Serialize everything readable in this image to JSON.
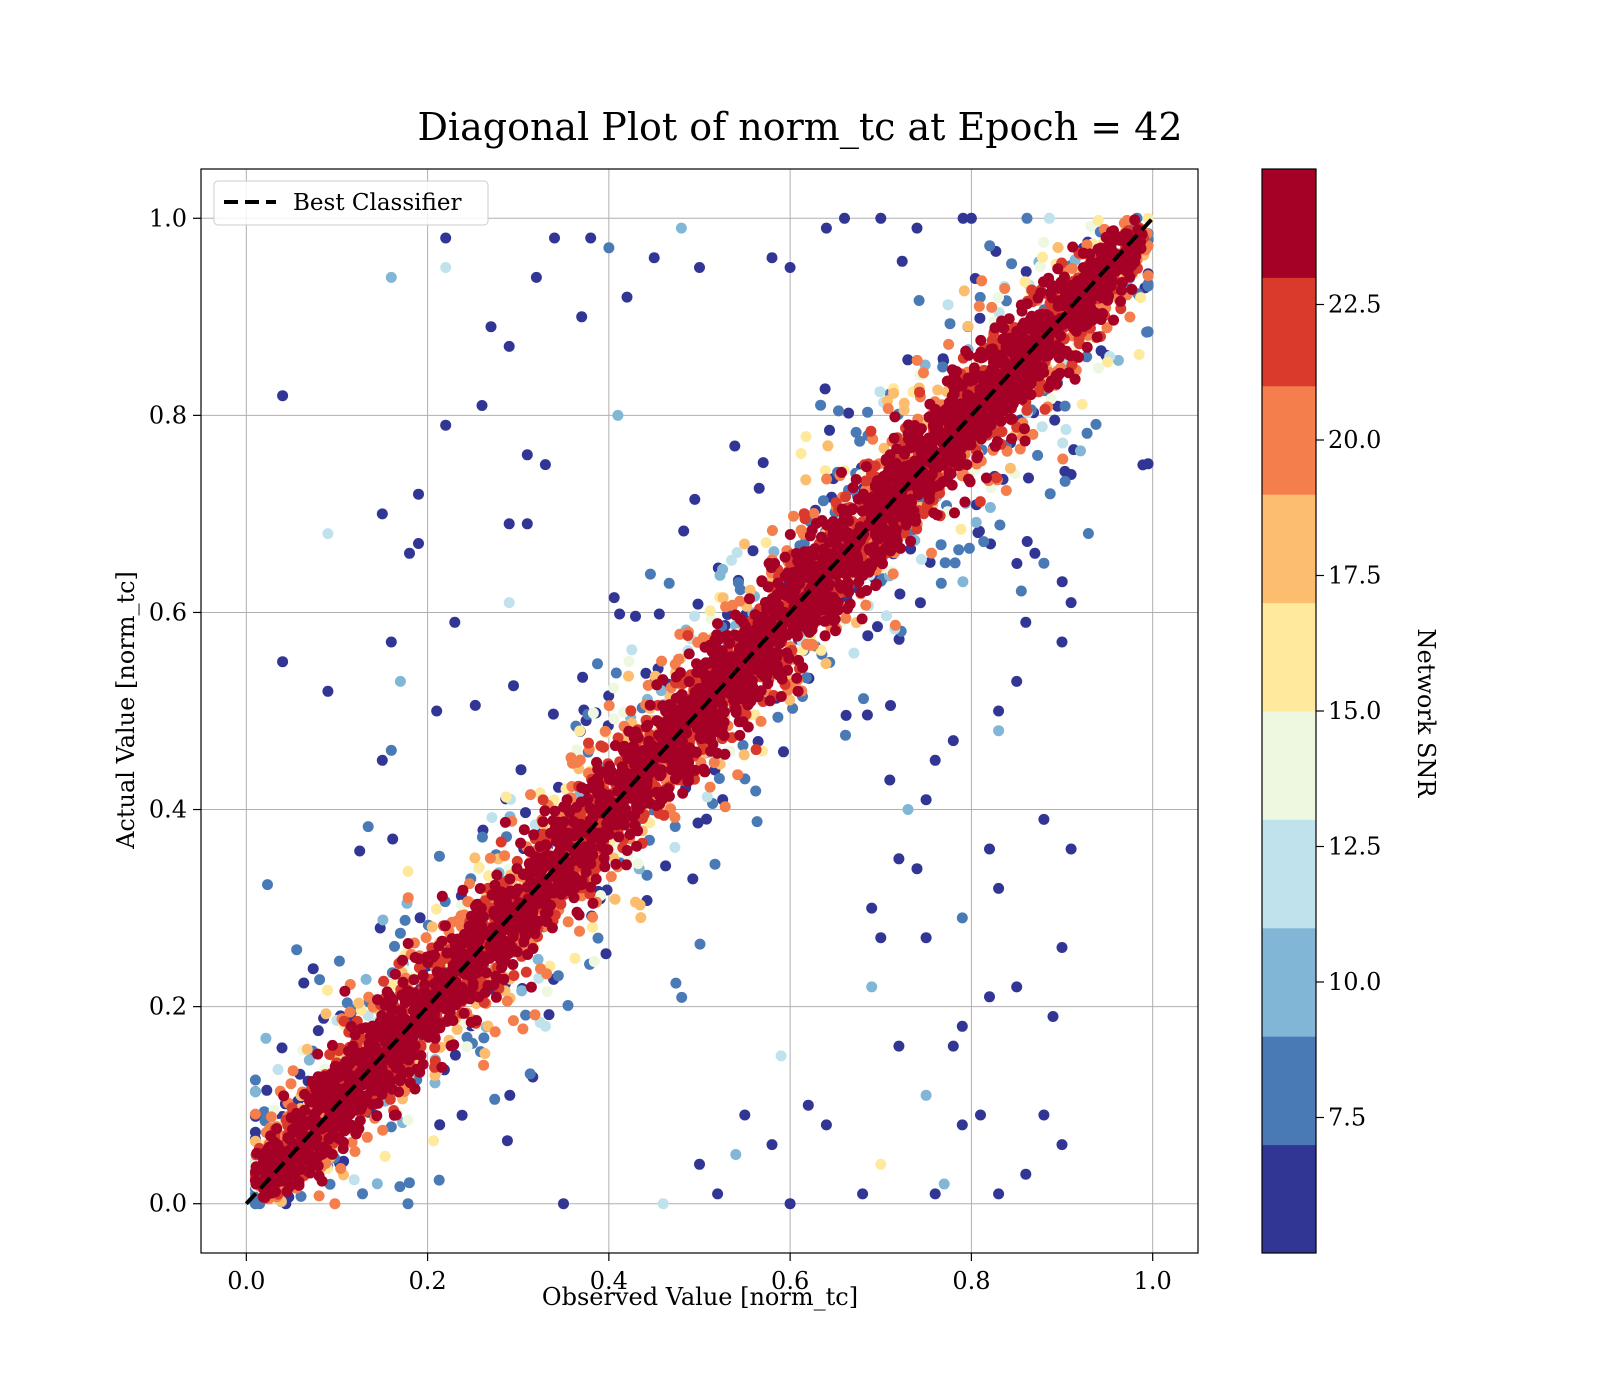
{
  "chart_data": {
    "type": "scatter",
    "title": "Diagonal Plot of norm_tc at Epoch = 42",
    "xlabel": "Observed Value [norm_tc]",
    "ylabel": "Actual Value [norm_tc]",
    "xlim": [
      -0.05,
      1.05
    ],
    "ylim": [
      -0.05,
      1.05
    ],
    "xticks": [
      "0.0",
      "0.2",
      "0.4",
      "0.6",
      "0.8",
      "1.0"
    ],
    "yticks": [
      "0.0",
      "0.2",
      "0.4",
      "0.6",
      "0.8",
      "1.0"
    ],
    "grid": true,
    "legend": {
      "placement": "upper-left",
      "entries": [
        {
          "label": "Best Classifier",
          "style": "dashed",
          "color": "#000000"
        }
      ]
    },
    "reference_line": {
      "name": "Best Classifier",
      "x": [
        0,
        1
      ],
      "y": [
        0,
        1
      ]
    },
    "colorbar": {
      "label": "Network SNR",
      "range": [
        5.0,
        25.0
      ],
      "ticks": [
        "7.5",
        "10.0",
        "12.5",
        "15.0",
        "17.5",
        "20.0",
        "22.5"
      ],
      "bins": [
        {
          "from": 5.0,
          "to": 7.0,
          "color": "#313695"
        },
        {
          "from": 7.0,
          "to": 9.0,
          "color": "#4a7ab6"
        },
        {
          "from": 9.0,
          "to": 11.0,
          "color": "#82b6d7"
        },
        {
          "from": 11.0,
          "to": 13.0,
          "color": "#bfe2ec"
        },
        {
          "from": 13.0,
          "to": 15.0,
          "color": "#eef7df"
        },
        {
          "from": 15.0,
          "to": 17.0,
          "color": "#fee99d"
        },
        {
          "from": 17.0,
          "to": 19.0,
          "color": "#fcbe6e"
        },
        {
          "from": 19.0,
          "to": 21.0,
          "color": "#f47e4c"
        },
        {
          "from": 21.0,
          "to": 23.0,
          "color": "#da3a2b"
        },
        {
          "from": 23.0,
          "to": 25.0,
          "color": "#a50026"
        }
      ]
    },
    "scatter_distribution": {
      "points": 6000,
      "note_high_snr": "tight along y = x",
      "note_low_snr": "widely scattered"
    },
    "outliers": [
      {
        "x": 0.04,
        "y": 0.82,
        "snr": 6
      },
      {
        "x": 0.22,
        "y": 0.98,
        "snr": 6
      },
      {
        "x": 0.16,
        "y": 0.94,
        "snr": 9
      },
      {
        "x": 0.22,
        "y": 0.95,
        "snr": 11
      },
      {
        "x": 0.04,
        "y": 0.55,
        "snr": 6
      },
      {
        "x": 0.09,
        "y": 0.52,
        "snr": 6
      },
      {
        "x": 0.09,
        "y": 0.68,
        "snr": 11
      },
      {
        "x": 0.15,
        "y": 0.7,
        "snr": 6
      },
      {
        "x": 0.19,
        "y": 0.72,
        "snr": 6
      },
      {
        "x": 0.18,
        "y": 0.66,
        "snr": 6
      },
      {
        "x": 0.19,
        "y": 0.67,
        "snr": 6
      },
      {
        "x": 0.22,
        "y": 0.79,
        "snr": 6
      },
      {
        "x": 0.26,
        "y": 0.81,
        "snr": 6
      },
      {
        "x": 0.27,
        "y": 0.89,
        "snr": 6
      },
      {
        "x": 0.29,
        "y": 0.87,
        "snr": 6
      },
      {
        "x": 0.31,
        "y": 0.76,
        "snr": 6
      },
      {
        "x": 0.33,
        "y": 0.75,
        "snr": 6
      },
      {
        "x": 0.34,
        "y": 0.98,
        "snr": 6
      },
      {
        "x": 0.32,
        "y": 0.94,
        "snr": 6
      },
      {
        "x": 0.37,
        "y": 0.9,
        "snr": 6
      },
      {
        "x": 0.16,
        "y": 0.57,
        "snr": 6
      },
      {
        "x": 0.17,
        "y": 0.53,
        "snr": 9
      },
      {
        "x": 0.15,
        "y": 0.45,
        "snr": 6
      },
      {
        "x": 0.16,
        "y": 0.46,
        "snr": 8
      },
      {
        "x": 0.21,
        "y": 0.5,
        "snr": 6
      },
      {
        "x": 0.23,
        "y": 0.59,
        "snr": 6
      },
      {
        "x": 0.29,
        "y": 0.61,
        "snr": 11
      },
      {
        "x": 0.29,
        "y": 0.69,
        "snr": 6
      },
      {
        "x": 0.31,
        "y": 0.69,
        "snr": 6
      },
      {
        "x": 0.4,
        "y": 0.97,
        "snr": 8
      },
      {
        "x": 0.38,
        "y": 0.98,
        "snr": 6
      },
      {
        "x": 0.41,
        "y": 0.8,
        "snr": 9
      },
      {
        "x": 0.42,
        "y": 0.92,
        "snr": 6
      },
      {
        "x": 0.45,
        "y": 0.96,
        "snr": 6
      },
      {
        "x": 0.48,
        "y": 0.99,
        "snr": 9
      },
      {
        "x": 0.5,
        "y": 0.95,
        "snr": 6
      },
      {
        "x": 0.58,
        "y": 0.96,
        "snr": 6
      },
      {
        "x": 0.6,
        "y": 0.95,
        "snr": 6
      },
      {
        "x": 0.64,
        "y": 0.99,
        "snr": 6
      },
      {
        "x": 0.66,
        "y": 1.0,
        "snr": 6
      },
      {
        "x": 0.7,
        "y": 1.0,
        "snr": 6
      },
      {
        "x": 0.74,
        "y": 0.99,
        "snr": 6
      },
      {
        "x": 0.8,
        "y": 1.0,
        "snr": 6
      },
      {
        "x": 0.6,
        "y": 0.0,
        "snr": 6
      },
      {
        "x": 0.68,
        "y": 0.01,
        "snr": 6
      },
      {
        "x": 0.83,
        "y": 0.01,
        "snr": 6
      },
      {
        "x": 0.77,
        "y": 0.02,
        "snr": 9
      },
      {
        "x": 0.46,
        "y": 0.0,
        "snr": 11
      },
      {
        "x": 0.35,
        "y": 0.0,
        "snr": 6
      },
      {
        "x": 0.7,
        "y": 0.04,
        "snr": 16
      },
      {
        "x": 0.86,
        "y": 0.03,
        "snr": 6
      },
      {
        "x": 0.9,
        "y": 0.06,
        "snr": 6
      },
      {
        "x": 0.88,
        "y": 0.09,
        "snr": 6
      },
      {
        "x": 0.89,
        "y": 0.19,
        "snr": 6
      },
      {
        "x": 0.9,
        "y": 0.26,
        "snr": 6
      },
      {
        "x": 0.91,
        "y": 0.36,
        "snr": 6
      },
      {
        "x": 0.88,
        "y": 0.39,
        "snr": 6
      },
      {
        "x": 0.82,
        "y": 0.36,
        "snr": 6
      },
      {
        "x": 0.83,
        "y": 0.32,
        "snr": 6
      },
      {
        "x": 0.82,
        "y": 0.21,
        "snr": 6
      },
      {
        "x": 0.85,
        "y": 0.22,
        "snr": 6
      },
      {
        "x": 0.79,
        "y": 0.29,
        "snr": 8
      },
      {
        "x": 0.75,
        "y": 0.27,
        "snr": 6
      },
      {
        "x": 0.78,
        "y": 0.16,
        "snr": 6
      },
      {
        "x": 0.79,
        "y": 0.18,
        "snr": 6
      },
      {
        "x": 0.74,
        "y": 0.34,
        "snr": 6
      },
      {
        "x": 0.72,
        "y": 0.35,
        "snr": 6
      },
      {
        "x": 0.75,
        "y": 0.11,
        "snr": 9
      },
      {
        "x": 0.72,
        "y": 0.16,
        "snr": 6
      },
      {
        "x": 0.69,
        "y": 0.3,
        "snr": 6
      },
      {
        "x": 0.7,
        "y": 0.27,
        "snr": 6
      },
      {
        "x": 0.69,
        "y": 0.22,
        "snr": 10
      },
      {
        "x": 0.83,
        "y": 0.5,
        "snr": 6
      },
      {
        "x": 0.83,
        "y": 0.48,
        "snr": 9
      },
      {
        "x": 0.85,
        "y": 0.53,
        "snr": 6
      },
      {
        "x": 0.9,
        "y": 0.57,
        "snr": 6
      },
      {
        "x": 0.91,
        "y": 0.61,
        "snr": 6
      },
      {
        "x": 0.86,
        "y": 0.59,
        "snr": 6
      },
      {
        "x": 0.88,
        "y": 0.65,
        "snr": 8
      },
      {
        "x": 0.91,
        "y": 0.74,
        "snr": 6
      },
      {
        "x": 0.87,
        "y": 0.66,
        "snr": 6
      },
      {
        "x": 0.76,
        "y": 0.45,
        "snr": 6
      },
      {
        "x": 0.75,
        "y": 0.41,
        "snr": 6
      },
      {
        "x": 0.73,
        "y": 0.4,
        "snr": 9
      },
      {
        "x": 0.71,
        "y": 0.43,
        "snr": 6
      },
      {
        "x": 0.78,
        "y": 0.47,
        "snr": 6
      },
      {
        "x": 0.76,
        "y": 0.01,
        "snr": 6
      },
      {
        "x": 0.79,
        "y": 0.08,
        "snr": 6
      },
      {
        "x": 0.81,
        "y": 0.09,
        "snr": 6
      },
      {
        "x": 0.62,
        "y": 0.1,
        "snr": 6
      },
      {
        "x": 0.64,
        "y": 0.08,
        "snr": 6
      },
      {
        "x": 0.59,
        "y": 0.15,
        "snr": 12
      },
      {
        "x": 0.55,
        "y": 0.09,
        "snr": 6
      },
      {
        "x": 0.58,
        "y": 0.06,
        "snr": 6
      },
      {
        "x": 0.52,
        "y": 0.01,
        "snr": 6
      },
      {
        "x": 0.5,
        "y": 0.04,
        "snr": 6
      },
      {
        "x": 0.54,
        "y": 0.05,
        "snr": 9
      }
    ]
  }
}
